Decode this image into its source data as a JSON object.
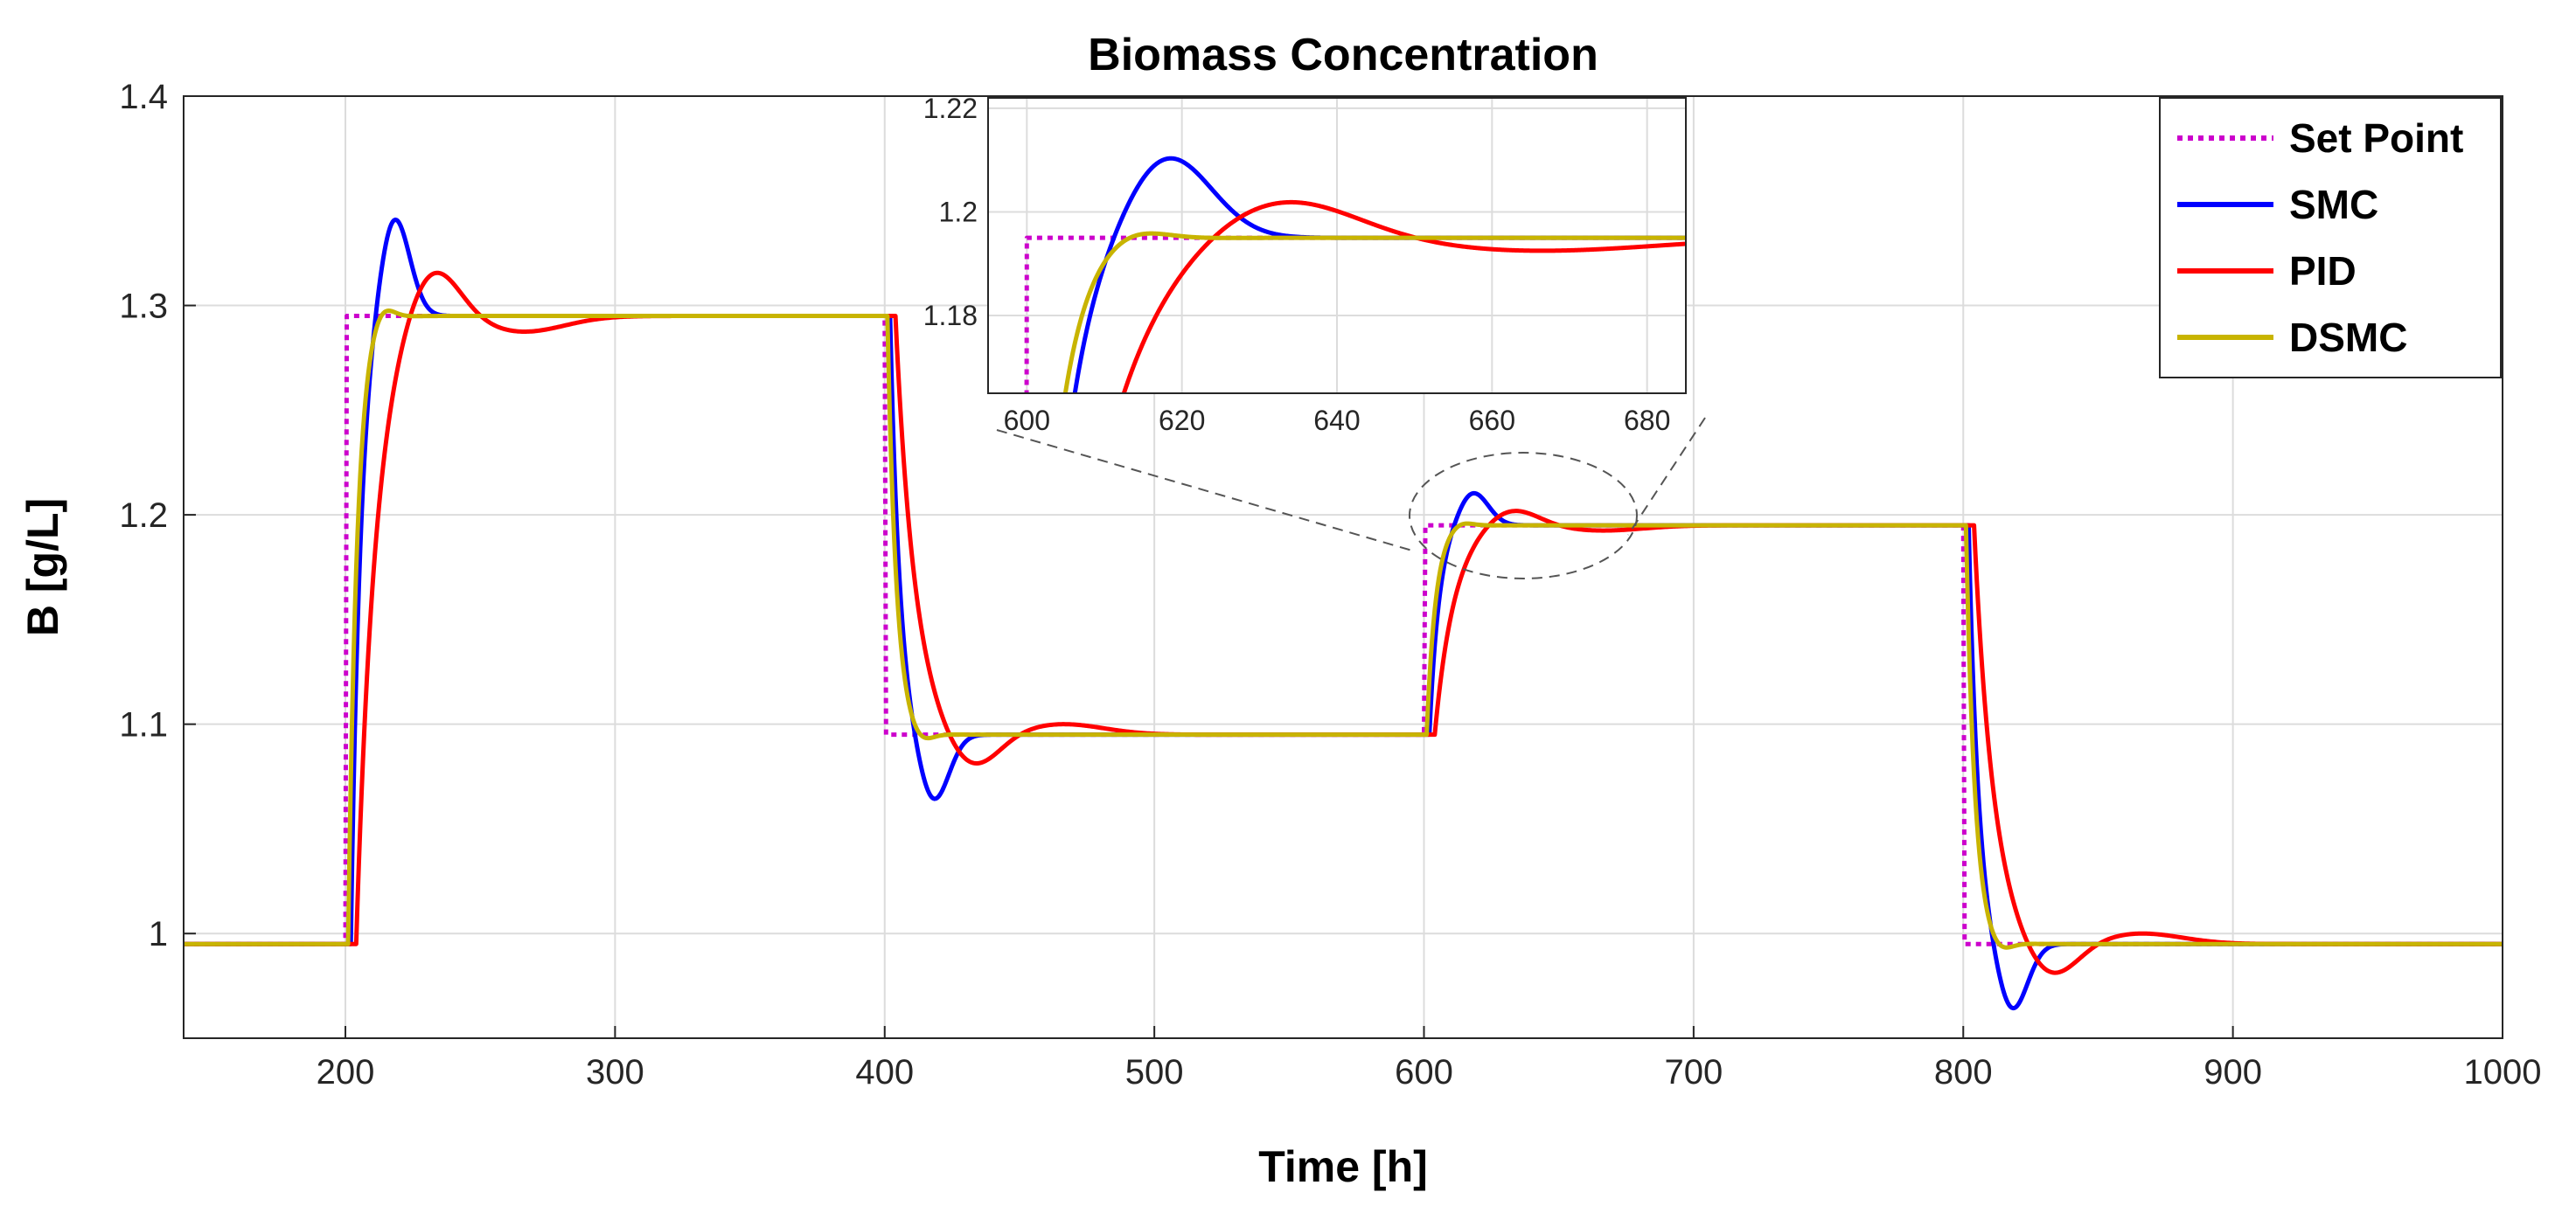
{
  "chart_data": {
    "type": "line",
    "title": "Biomass Concentration",
    "xlabel": "Time [h]",
    "ylabel": "B [g/L]",
    "xlim": [
      140,
      1000
    ],
    "ylim": [
      0.95,
      1.4
    ],
    "xticks": [
      "200",
      "300",
      "400",
      "500",
      "600",
      "700",
      "800",
      "900",
      "1000"
    ],
    "yticks": [
      "1",
      "1.1",
      "1.2",
      "1.3",
      "1.4"
    ],
    "grid": true,
    "legend_position": "top-right",
    "step_times": [
      200,
      400,
      600,
      800
    ],
    "levels": [
      0.995,
      1.295,
      1.095,
      1.195,
      0.995
    ],
    "series": [
      {
        "name": "Set Point",
        "color": "#CC00CC",
        "style": "dotted",
        "delay": 0,
        "rise": 0.5,
        "overshoot_frac": 0.0,
        "overshoot_t": 0,
        "undershoot_frac": 0.0,
        "undershoot_t": 0
      },
      {
        "name": "SMC",
        "color": "#0000FF",
        "style": "solid",
        "delay": 2,
        "rise": 11,
        "overshoot_frac": 0.165,
        "overshoot_t": 16,
        "undershoot_frac": 0.0,
        "undershoot_t": 30
      },
      {
        "name": "PID",
        "color": "#FF0000",
        "style": "solid",
        "delay": 4,
        "rise": 22,
        "overshoot_frac": 0.09,
        "overshoot_t": 28,
        "undershoot_frac": 0.025,
        "undershoot_t": 62
      },
      {
        "name": "DSMC",
        "color": "#C8B400",
        "style": "solid",
        "delay": 1,
        "rise": 10,
        "overshoot_frac": 0.025,
        "overshoot_t": 12,
        "undershoot_frac": 0.0,
        "undershoot_t": 25
      }
    ],
    "inset": {
      "xlim": [
        595,
        685
      ],
      "ylim": [
        1.165,
        1.222
      ],
      "xticks": [
        "600",
        "620",
        "640",
        "660",
        "680"
      ],
      "yticks": [
        "1.18",
        "1.2",
        "1.22"
      ]
    }
  }
}
